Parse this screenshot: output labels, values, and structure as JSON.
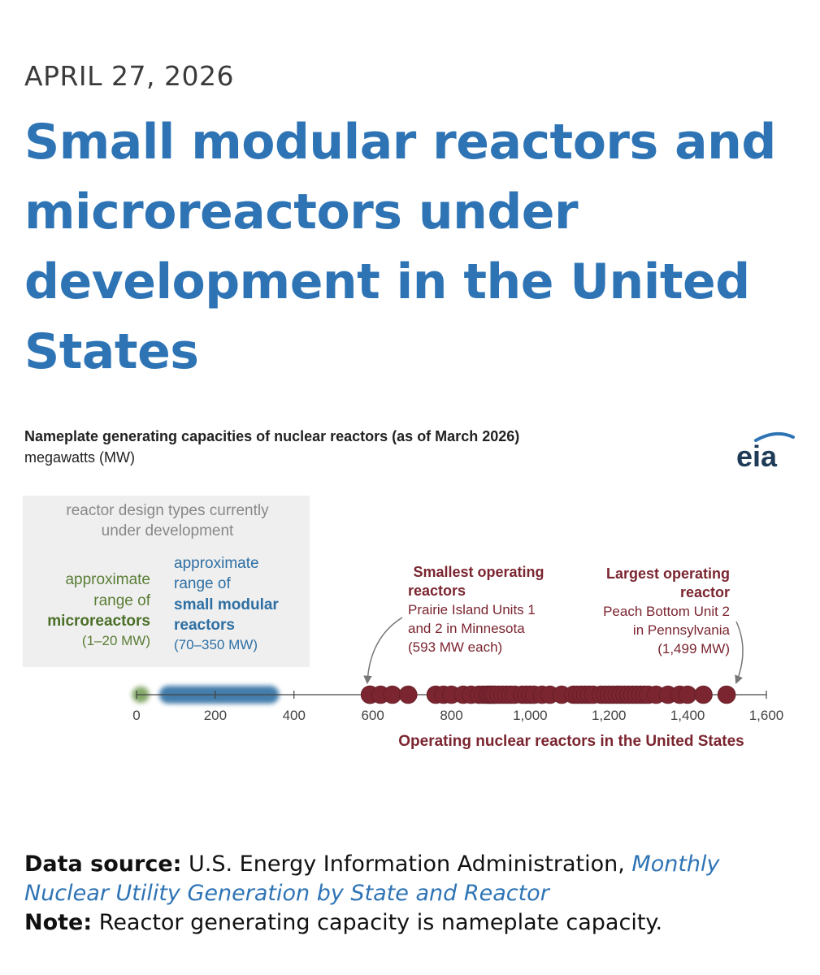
{
  "header": {
    "date": "APRIL 27, 2026",
    "headline": "Small modular reactors and microreactors under development in the United States"
  },
  "chart_title": "Nameplate generating capacities of nuclear reactors (as of March 2026)",
  "chart_subtitle": "megawatts (MW)",
  "logo_text": "eia",
  "chart_data": {
    "type": "scatter",
    "title": "Nameplate generating capacities of nuclear reactors (as of March 2026)",
    "unit": "megawatts (MW)",
    "xlim": [
      0,
      1600
    ],
    "x_ticks": [
      0,
      200,
      400,
      600,
      800,
      1000,
      1200,
      1400,
      1600
    ],
    "x_tick_labels": [
      "0",
      "200",
      "400",
      "600",
      "800",
      "1,000",
      "1,200",
      "1,400",
      "1,600"
    ],
    "series_label": "Operating nuclear reactors in the United States",
    "operating_reactors_mw": [
      593,
      593,
      620,
      650,
      690,
      760,
      780,
      800,
      830,
      850,
      870,
      880,
      890,
      895,
      900,
      905,
      910,
      920,
      930,
      940,
      950,
      960,
      980,
      990,
      1000,
      1010,
      1030,
      1050,
      1080,
      1110,
      1120,
      1130,
      1140,
      1150,
      1160,
      1180,
      1190,
      1200,
      1210,
      1220,
      1230,
      1240,
      1250,
      1260,
      1270,
      1280,
      1290,
      1300,
      1320,
      1350,
      1380,
      1400,
      1440,
      1499
    ],
    "ranges": [
      {
        "name": "microreactors",
        "min": 1,
        "max": 20
      },
      {
        "name": "small modular reactors",
        "min": 70,
        "max": 350
      }
    ],
    "colors": {
      "operating": "#7b2530",
      "microreactor": "#6f9a4f",
      "smr": "#2e6fa3",
      "annotation": "#7b2530"
    }
  },
  "design_box": {
    "heading": [
      "reactor design types currently",
      "under development"
    ],
    "micro": {
      "line1": "approximate",
      "line2": "range of",
      "name": "microreactors",
      "range": "(1–20 MW)"
    },
    "smr": {
      "line1": "approximate",
      "line2": "range of",
      "name1": "small modular",
      "name2": "reactors",
      "range": "(70–350 MW)"
    }
  },
  "annotations": {
    "smallest": {
      "title1": "Smallest operating",
      "title2": "reactors",
      "line1": "Prairie Island Units 1",
      "line2": "and 2 in Minnesota",
      "line3": "(593 MW each)"
    },
    "largest": {
      "title1": "Largest operating",
      "title2": "reactor",
      "line1": "Peach Bottom Unit 2",
      "line2": "in Pennsylvania",
      "line3": "(1,499 MW)"
    }
  },
  "footer": {
    "source_label": "Data source:",
    "source_text": "U.S. Energy Information Administration,",
    "source_link": "Monthly Nuclear Utility Generation by State and Reactor",
    "note_label": "Note:",
    "note_text": "Reactor generating capacity is nameplate capacity."
  }
}
